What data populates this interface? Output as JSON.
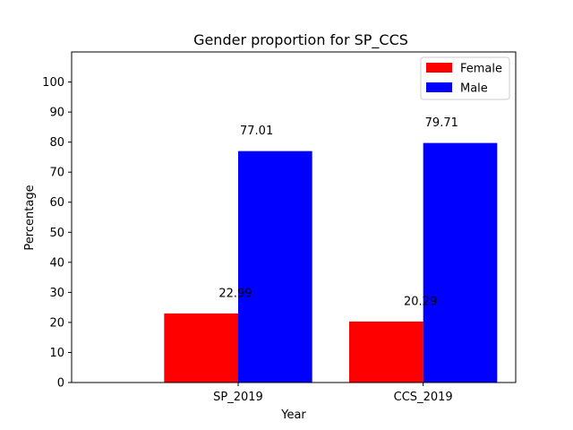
{
  "chart_data": {
    "type": "bar",
    "title": "Gender proportion for SP_CCS",
    "xlabel": "Year",
    "ylabel": "Percentage",
    "categories": [
      "SP_2019",
      "CCS_2019"
    ],
    "series": [
      {
        "name": "Female",
        "color": "#ff0000",
        "values": [
          22.99,
          20.29
        ],
        "labels": [
          "22.99",
          "20.29"
        ]
      },
      {
        "name": "Male",
        "color": "#0000ff",
        "values": [
          77.01,
          79.71
        ],
        "labels": [
          "77.01",
          "79.71"
        ]
      }
    ],
    "ylim": [
      0,
      110
    ],
    "yticks": [
      0,
      10,
      20,
      30,
      40,
      50,
      60,
      70,
      80,
      90,
      100
    ],
    "grid": false,
    "legend_position": "top-right"
  }
}
